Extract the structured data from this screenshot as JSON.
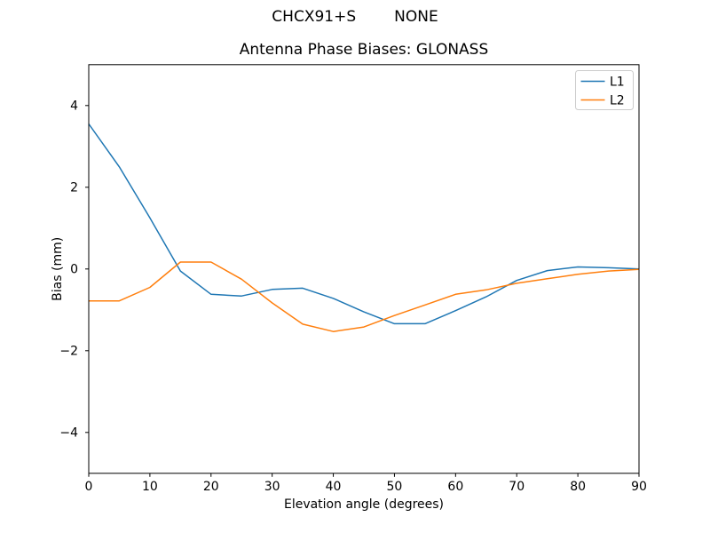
{
  "suptitle": {
    "left": "CHCX91+S",
    "right": "NONE"
  },
  "chart_data": {
    "type": "line",
    "title": "Antenna Phase Biases: GLONASS",
    "xlabel": "Elevation angle (degrees)",
    "ylabel": "Bias (mm)",
    "xlim": [
      0,
      90
    ],
    "ylim": [
      -5,
      5
    ],
    "xticks": [
      0,
      10,
      20,
      30,
      40,
      50,
      60,
      70,
      80,
      90
    ],
    "yticks": [
      -4,
      -2,
      0,
      2,
      4
    ],
    "grid": false,
    "legend_position": "upper right",
    "x": [
      0,
      5,
      10,
      15,
      20,
      25,
      30,
      35,
      40,
      45,
      50,
      55,
      60,
      65,
      70,
      75,
      80,
      85,
      90
    ],
    "series": [
      {
        "name": "L1",
        "color": "#1f77b4",
        "values": [
          3.55,
          2.5,
          1.25,
          -0.05,
          -0.62,
          -0.66,
          -0.5,
          -0.47,
          -0.72,
          -1.05,
          -1.34,
          -1.34,
          -1.02,
          -0.68,
          -0.28,
          -0.04,
          0.05,
          0.03,
          0.0
        ]
      },
      {
        "name": "L2",
        "color": "#ff7f0e",
        "values": [
          -0.78,
          -0.78,
          -0.45,
          0.17,
          0.17,
          -0.25,
          -0.83,
          -1.35,
          -1.53,
          -1.42,
          -1.14,
          -0.88,
          -0.62,
          -0.51,
          -0.35,
          -0.24,
          -0.13,
          -0.05,
          -0.01
        ]
      }
    ]
  }
}
